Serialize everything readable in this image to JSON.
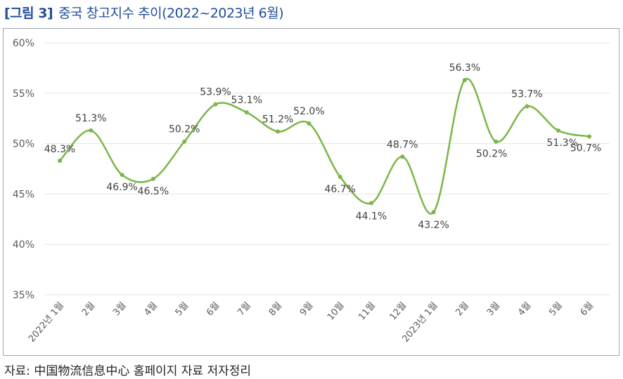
{
  "figure": {
    "number": "[그림 3]",
    "title": "중국 창고지수 추이(2022~2023년 6월)"
  },
  "source": "자료: 中国物流信息中心 홈페이지 자료 저자정리",
  "colors": {
    "line": "#7ab648",
    "grid": "#e3e3e3",
    "title": "#1f4e9b",
    "frame": "#9ea7b3"
  },
  "chart_data": {
    "type": "line",
    "categories": [
      "2022년 1월",
      "2월",
      "3월",
      "4월",
      "5월",
      "6월",
      "7월",
      "8월",
      "9월",
      "10월",
      "11월",
      "12월",
      "2023년 1월",
      "2월",
      "3월",
      "4월",
      "5월",
      "6월"
    ],
    "series": [
      {
        "values": [
          48.3,
          51.3,
          46.9,
          46.5,
          50.2,
          53.9,
          53.1,
          51.2,
          52.0,
          46.7,
          44.1,
          48.7,
          43.2,
          56.3,
          50.2,
          53.7,
          51.3,
          50.7
        ]
      }
    ],
    "data_labels": [
      "48.3%",
      "51.3%",
      "46.9%",
      "46.5%",
      "50.2%",
      "53.9%",
      "53.1%",
      "51.2%",
      "52.0%",
      "46.7%",
      "44.1%",
      "48.7%",
      "43.2%",
      "56.3%",
      "50.2%",
      "53.7%",
      "51.3%",
      "50.7%"
    ],
    "y_ticks": [
      "35%",
      "40%",
      "45%",
      "50%",
      "55%",
      "60%"
    ],
    "ylim": [
      35,
      60
    ],
    "grid": true,
    "legend": "none",
    "smooth": true
  }
}
